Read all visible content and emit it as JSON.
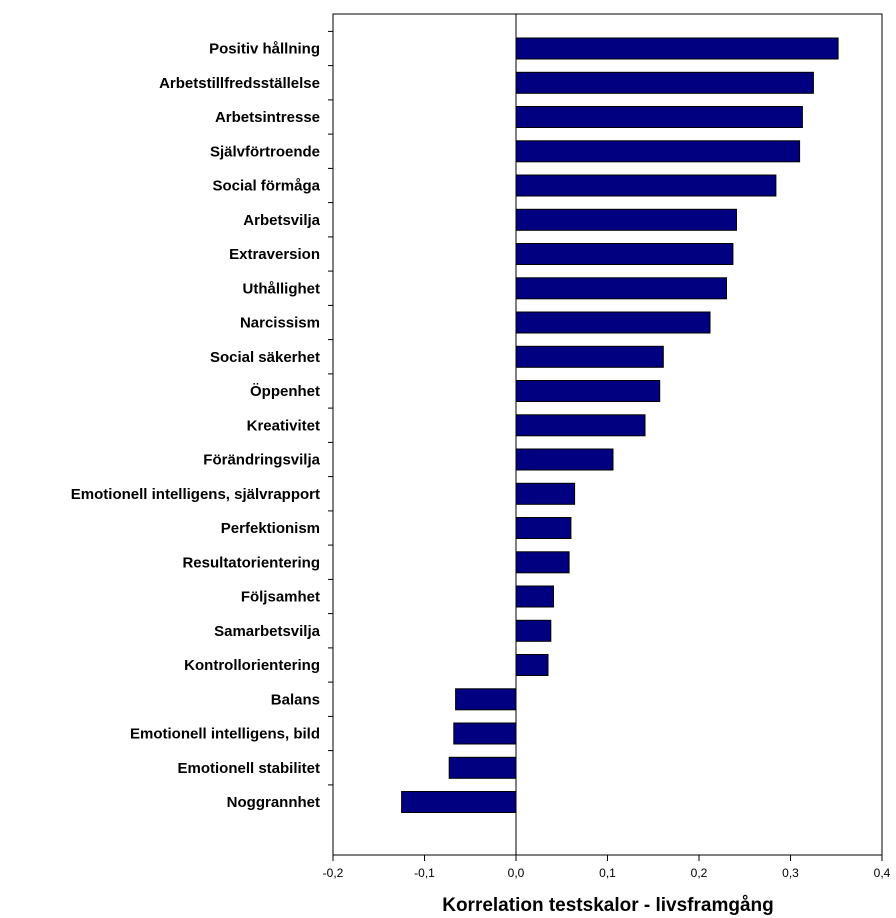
{
  "chart_data": {
    "type": "bar",
    "orientation": "horizontal",
    "categories": [
      "Positiv hållning",
      "Arbetstillfredsställelse",
      "Arbetsintresse",
      "Självförtroende",
      "Social förmåga",
      "Arbetsvilja",
      "Extraversion",
      "Uthållighet",
      "Narcissism",
      "Social säkerhet",
      "Öppenhet",
      "Kreativitet",
      "Förändringsvilja",
      "Emotionell intelligens, självrapport",
      "Perfektionism",
      "Resultatorientering",
      "Följsamhet",
      "Samarbetsvilja",
      "Kontrollorientering",
      "Balans",
      "Emotionell intelligens, bild",
      "Emotionell stabilitet",
      "Noggrannhet"
    ],
    "values": [
      0.352,
      0.325,
      0.313,
      0.31,
      0.284,
      0.241,
      0.237,
      0.23,
      0.212,
      0.161,
      0.157,
      0.141,
      0.106,
      0.064,
      0.06,
      0.058,
      0.041,
      0.038,
      0.035,
      -0.066,
      -0.068,
      -0.073,
      -0.125
    ],
    "xlabel": "Korrelation testskalor - livsframgång",
    "ylabel": "",
    "title": "",
    "xlim": [
      -0.2,
      0.4
    ],
    "xticks": [
      -0.2,
      -0.1,
      0.0,
      0.1,
      0.2,
      0.3,
      0.4
    ],
    "xtick_labels": [
      "-0,2",
      "-0,1",
      "0,0",
      "0,1",
      "0,2",
      "0,3",
      "0,4"
    ],
    "grid": false,
    "legend": "none",
    "bar_color": "#000080"
  }
}
